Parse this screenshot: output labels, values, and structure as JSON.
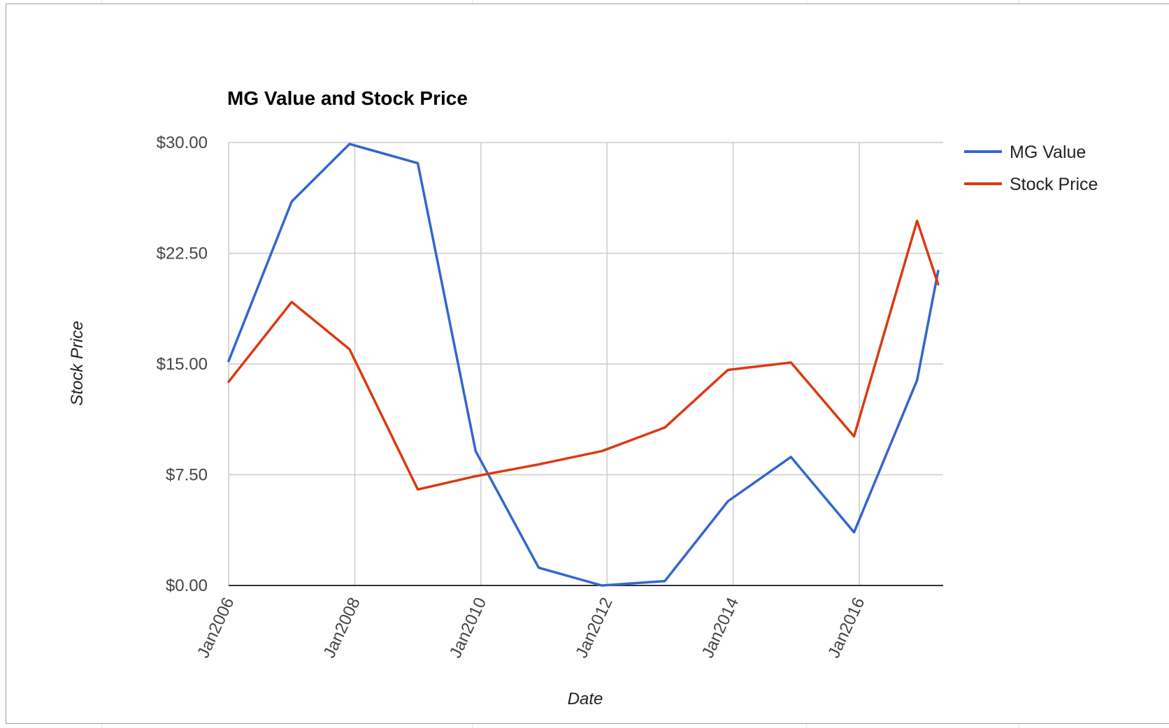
{
  "chart_data": {
    "type": "line",
    "title": "MG Value and Stock Price",
    "xlabel": "Date",
    "ylabel": "Stock Price",
    "ylim": [
      0,
      30
    ],
    "y_ticks": [
      "$0.00",
      "$7.50",
      "$15.00",
      "$22.50",
      "$30.00"
    ],
    "y_tick_values": [
      0,
      7.5,
      15,
      22.5,
      30
    ],
    "x_ticks": [
      "Jan2006",
      "Jan2008",
      "Jan2010",
      "Jan2012",
      "Jan2014",
      "Jan2016"
    ],
    "x_tick_values": [
      2006,
      2008,
      2010,
      2012,
      2014,
      2016
    ],
    "xlim": [
      2006,
      2017.33
    ],
    "grid": true,
    "legend_position": "right",
    "series": [
      {
        "name": "MG Value",
        "color": "#3366cc",
        "points": [
          {
            "x": "2006-01",
            "y": 15.2
          },
          {
            "x": "2007-01",
            "y": 26.0
          },
          {
            "x": "2007-12",
            "y": 29.9
          },
          {
            "x": "2009-01",
            "y": 28.6
          },
          {
            "x": "2009-12",
            "y": 9.1
          },
          {
            "x": "2010-12",
            "y": 1.2
          },
          {
            "x": "2011-12",
            "y": 0.0
          },
          {
            "x": "2012-12",
            "y": 0.3
          },
          {
            "x": "2013-12",
            "y": 5.7
          },
          {
            "x": "2014-12",
            "y": 8.7
          },
          {
            "x": "2015-12",
            "y": 3.6
          },
          {
            "x": "2016-12",
            "y": 13.9
          },
          {
            "x": "2017-04",
            "y": 21.3
          }
        ]
      },
      {
        "name": "Stock Price",
        "color": "#dc3912",
        "points": [
          {
            "x": "2006-01",
            "y": 13.8
          },
          {
            "x": "2007-01",
            "y": 19.2
          },
          {
            "x": "2007-12",
            "y": 16.0
          },
          {
            "x": "2009-01",
            "y": 6.5
          },
          {
            "x": "2009-12",
            "y": 7.4
          },
          {
            "x": "2010-12",
            "y": 8.2
          },
          {
            "x": "2011-12",
            "y": 9.1
          },
          {
            "x": "2012-12",
            "y": 10.7
          },
          {
            "x": "2013-12",
            "y": 14.6
          },
          {
            "x": "2014-12",
            "y": 15.1
          },
          {
            "x": "2015-12",
            "y": 10.1
          },
          {
            "x": "2016-12",
            "y": 24.7
          },
          {
            "x": "2017-04",
            "y": 20.4
          }
        ]
      }
    ]
  }
}
